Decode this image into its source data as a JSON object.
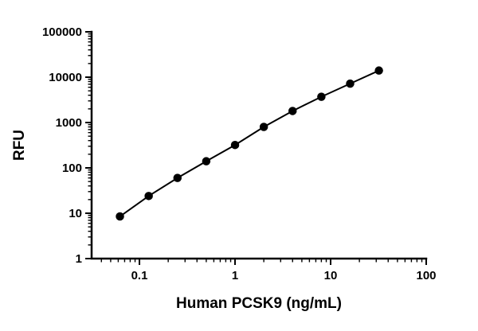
{
  "figure": {
    "background": "#ffffff",
    "axis_color": "#000000",
    "text_color": "#000000"
  },
  "chart_data": {
    "type": "line",
    "title": "",
    "xlabel": "Human PCSK9 (ng/mL)",
    "ylabel": "RFU",
    "xscale": "log",
    "yscale": "log",
    "xlim": [
      0.0316,
      100
    ],
    "ylim": [
      1,
      100000
    ],
    "x": [
      0.0625,
      0.125,
      0.25,
      0.5,
      1,
      2,
      4,
      8,
      16,
      32
    ],
    "y": [
      8.5,
      24,
      60,
      140,
      320,
      800,
      1800,
      3700,
      7200,
      14000
    ],
    "x_ticks": [
      0.1,
      1,
      10,
      100
    ],
    "x_tick_labels": [
      "0.1",
      "1",
      "10",
      "100"
    ],
    "y_ticks": [
      1,
      10,
      100,
      1000,
      10000,
      100000
    ],
    "y_tick_labels": [
      "1",
      "10",
      "100",
      "1000",
      "10000",
      "100000"
    ],
    "grid": false,
    "legend": null,
    "marker": {
      "shape": "circle",
      "color": "#000000",
      "size": 10.5
    },
    "line": {
      "color": "#000000",
      "width": 2
    }
  }
}
